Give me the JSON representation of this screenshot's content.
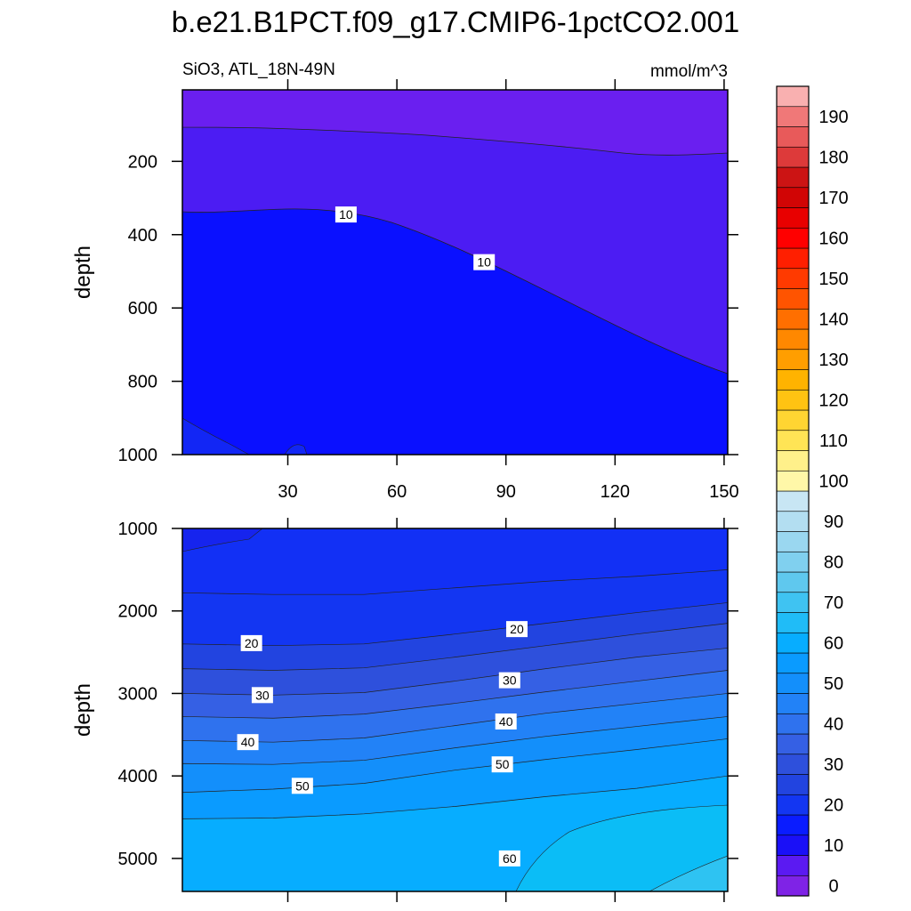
{
  "title": "b.e21.B1PCT.f09_g17.CMIP6-1pctCO2.001",
  "subtitle_left": "SiO3, ATL_18N-49N",
  "subtitle_right": "mmol/m^3",
  "chart_data": [
    {
      "type": "heatmap",
      "panel": "upper",
      "xlabel": "",
      "ylabel": "depth",
      "xlim": [
        1,
        151
      ],
      "ylim": [
        1000,
        5
      ],
      "x_ticks": [
        "30",
        "60",
        "90",
        "120",
        "150"
      ],
      "y_ticks": [
        "200",
        "400",
        "600",
        "800",
        "1000"
      ],
      "contour_labels": [
        {
          "text": "10",
          "x": 46,
          "y": 345
        },
        {
          "text": "10",
          "x": 84,
          "y": 475
        }
      ],
      "contour_lines": [
        {
          "level": 5,
          "depth": [
            108,
            105,
            115,
            130,
            150,
            165,
            175
          ]
        },
        {
          "level": 10,
          "depth": [
            335,
            330,
            360,
            430,
            540,
            660,
            780
          ]
        },
        {
          "level": 15,
          "note": "small pocket at bottom-left",
          "depth": [
            910,
            985,
            1000,
            1000,
            1000,
            1000,
            1000
          ]
        }
      ]
    },
    {
      "type": "heatmap",
      "panel": "lower",
      "xlabel": "",
      "ylabel": "depth",
      "xlim": [
        1,
        151
      ],
      "ylim": [
        5400,
        1000
      ],
      "x_ticks": [
        "30",
        "60",
        "90",
        "120",
        "150"
      ],
      "y_ticks": [
        "1000",
        "2000",
        "3000",
        "4000",
        "5000"
      ],
      "contour_labels": [
        {
          "text": "20",
          "x": 20,
          "y": 2390
        },
        {
          "text": "30",
          "x": 23,
          "y": 3020
        },
        {
          "text": "40",
          "x": 19,
          "y": 3590
        },
        {
          "text": "50",
          "x": 34,
          "y": 4120
        },
        {
          "text": "20",
          "x": 93,
          "y": 2220
        },
        {
          "text": "30",
          "x": 91,
          "y": 2840
        },
        {
          "text": "40",
          "x": 90,
          "y": 3340
        },
        {
          "text": "50",
          "x": 89,
          "y": 3860
        },
        {
          "text": "60",
          "x": 91,
          "y": 5000
        }
      ],
      "contour_lines": [
        {
          "level": 15,
          "depth": [
            1780,
            1800,
            1800,
            1720,
            1640,
            1580,
            1500
          ]
        },
        {
          "level": 20,
          "depth": [
            2400,
            2420,
            2400,
            2280,
            2150,
            2020,
            1900
          ]
        },
        {
          "level": 25,
          "depth": [
            2700,
            2720,
            2690,
            2560,
            2420,
            2280,
            2150
          ]
        },
        {
          "level": 30,
          "depth": [
            3000,
            3020,
            2990,
            2850,
            2700,
            2560,
            2450
          ]
        },
        {
          "level": 35,
          "depth": [
            3280,
            3300,
            3250,
            3120,
            2980,
            2850,
            2720
          ]
        },
        {
          "level": 40,
          "depth": [
            3570,
            3590,
            3540,
            3390,
            3240,
            3120,
            3000
          ]
        },
        {
          "level": 45,
          "depth": [
            3850,
            3860,
            3810,
            3660,
            3520,
            3400,
            3280
          ]
        },
        {
          "level": 50,
          "depth": [
            4200,
            4160,
            4090,
            3930,
            3800,
            3680,
            3550
          ]
        },
        {
          "level": 55,
          "depth": [
            4520,
            4510,
            4460,
            4370,
            4250,
            4150,
            4000
          ]
        }
      ]
    }
  ],
  "colorbar": {
    "labels": [
      "0",
      "10",
      "20",
      "30",
      "40",
      "50",
      "60",
      "70",
      "80",
      "90",
      "100",
      "110",
      "120",
      "130",
      "140",
      "150",
      "160",
      "170",
      "180",
      "190"
    ],
    "colors": [
      "#7f23e6",
      "#5b1af2",
      "#1a10f7",
      "#0a1cff",
      "#1336f2",
      "#2244e0",
      "#2e50dc",
      "#3560e4",
      "#2f72ee",
      "#2282f7",
      "#138ffb",
      "#0a9bff",
      "#07adff",
      "#20bcf7",
      "#3fc3f2",
      "#5fc8ee",
      "#80d0ef",
      "#9ad7f0",
      "#b3def1",
      "#c8e6f4",
      "#fff7a8",
      "#fff08a",
      "#ffe455",
      "#ffd532",
      "#ffc312",
      "#ffb300",
      "#ff9e00",
      "#ff8800",
      "#ff6f00",
      "#ff5400",
      "#ff3a00",
      "#ff1f00",
      "#ff0000",
      "#e80000",
      "#d10505",
      "#cc1414",
      "#dd3a3a",
      "#e85a5a",
      "#f07878",
      "#f9b0b0"
    ]
  }
}
